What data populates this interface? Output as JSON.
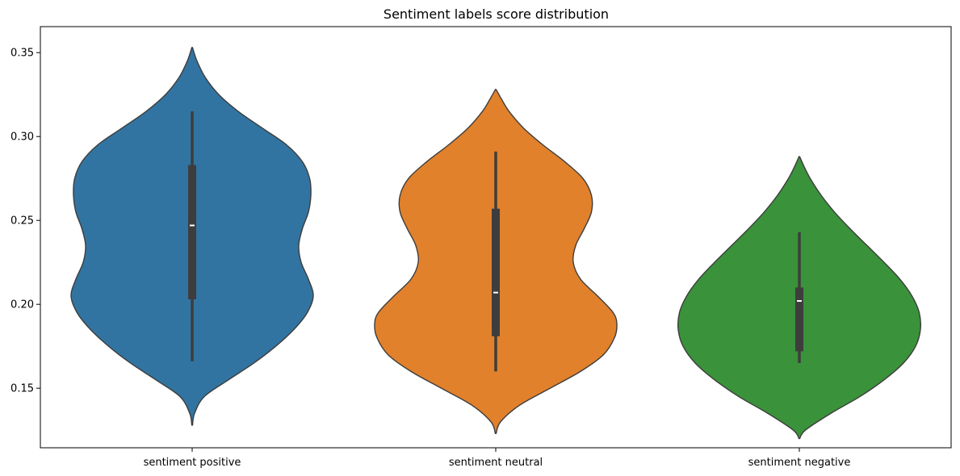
{
  "chart_data": {
    "type": "violin",
    "title": "Sentiment labels score distribution",
    "xlabel": "",
    "ylabel": "",
    "ylim": [
      0.1145,
      0.3655
    ],
    "yticks": [
      0.15,
      0.2,
      0.25,
      0.3,
      0.35
    ],
    "ytick_labels": [
      "0.15",
      "0.20",
      "0.25",
      "0.30",
      "0.35"
    ],
    "categories": [
      "sentiment positive",
      "sentiment neutral",
      "sentiment negative"
    ],
    "grid": false,
    "legend": "none",
    "series": [
      {
        "category": "sentiment positive",
        "color": "#3274a1",
        "min": 0.166,
        "q1": 0.203,
        "median": 0.247,
        "q3": 0.283,
        "max": 0.315,
        "range": [
          0.128,
          0.353
        ],
        "density": [
          [
            0.128,
            0.003
          ],
          [
            0.135,
            0.02
          ],
          [
            0.145,
            0.1
          ],
          [
            0.155,
            0.3
          ],
          [
            0.165,
            0.51
          ],
          [
            0.175,
            0.69
          ],
          [
            0.185,
            0.84
          ],
          [
            0.195,
            0.95
          ],
          [
            0.205,
            1.0
          ],
          [
            0.215,
            0.96
          ],
          [
            0.225,
            0.9
          ],
          [
            0.235,
            0.88
          ],
          [
            0.245,
            0.91
          ],
          [
            0.255,
            0.96
          ],
          [
            0.265,
            0.98
          ],
          [
            0.275,
            0.97
          ],
          [
            0.285,
            0.91
          ],
          [
            0.295,
            0.78
          ],
          [
            0.305,
            0.58
          ],
          [
            0.315,
            0.38
          ],
          [
            0.325,
            0.22
          ],
          [
            0.335,
            0.11
          ],
          [
            0.345,
            0.04
          ],
          [
            0.353,
            0.003
          ]
        ]
      },
      {
        "category": "sentiment neutral",
        "color": "#e1812c",
        "min": 0.16,
        "q1": 0.181,
        "median": 0.207,
        "q3": 0.257,
        "max": 0.291,
        "range": [
          0.123,
          0.328
        ],
        "density": [
          [
            0.123,
            0.003
          ],
          [
            0.13,
            0.04
          ],
          [
            0.14,
            0.2
          ],
          [
            0.15,
            0.45
          ],
          [
            0.16,
            0.7
          ],
          [
            0.17,
            0.89
          ],
          [
            0.18,
            0.98
          ],
          [
            0.188,
            1.0
          ],
          [
            0.195,
            0.97
          ],
          [
            0.205,
            0.84
          ],
          [
            0.215,
            0.7
          ],
          [
            0.225,
            0.64
          ],
          [
            0.235,
            0.66
          ],
          [
            0.245,
            0.73
          ],
          [
            0.255,
            0.79
          ],
          [
            0.265,
            0.79
          ],
          [
            0.275,
            0.72
          ],
          [
            0.285,
            0.57
          ],
          [
            0.295,
            0.39
          ],
          [
            0.305,
            0.23
          ],
          [
            0.315,
            0.11
          ],
          [
            0.322,
            0.05
          ],
          [
            0.328,
            0.003
          ]
        ]
      },
      {
        "category": "sentiment negative",
        "color": "#3a923a",
        "min": 0.165,
        "q1": 0.172,
        "median": 0.202,
        "q3": 0.21,
        "max": 0.243,
        "range": [
          0.12,
          0.288
        ],
        "density": [
          [
            0.12,
            0.003
          ],
          [
            0.125,
            0.05
          ],
          [
            0.135,
            0.26
          ],
          [
            0.145,
            0.5
          ],
          [
            0.155,
            0.7
          ],
          [
            0.165,
            0.86
          ],
          [
            0.175,
            0.96
          ],
          [
            0.185,
            1.0
          ],
          [
            0.195,
            0.99
          ],
          [
            0.205,
            0.93
          ],
          [
            0.215,
            0.83
          ],
          [
            0.225,
            0.7
          ],
          [
            0.235,
            0.56
          ],
          [
            0.245,
            0.42
          ],
          [
            0.255,
            0.29
          ],
          [
            0.265,
            0.18
          ],
          [
            0.275,
            0.09
          ],
          [
            0.282,
            0.04
          ],
          [
            0.288,
            0.003
          ]
        ]
      }
    ]
  }
}
